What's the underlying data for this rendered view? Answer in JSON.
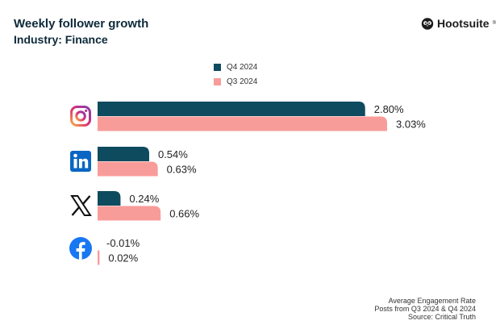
{
  "header": {
    "title": "Weekly follower growth",
    "subtitle": "Industry: Finance",
    "brand": "Hootsuite",
    "brand_mark": "®"
  },
  "legend": [
    {
      "label": "Q4 2024",
      "color": "#0e4b5f"
    },
    {
      "label": "Q3 2024",
      "color": "#f89c9a"
    }
  ],
  "chart_data": {
    "type": "bar",
    "orientation": "horizontal",
    "categories": [
      "instagram-icon",
      "linkedin-icon",
      "x-icon",
      "facebook-icon"
    ],
    "series": [
      {
        "name": "Q4 2024",
        "color": "#0e4b5f",
        "values": [
          2.8,
          0.54,
          0.24,
          -0.01
        ]
      },
      {
        "name": "Q3 2024",
        "color": "#f89c9a",
        "values": [
          3.03,
          0.63,
          0.66,
          0.02
        ]
      }
    ],
    "data_labels": [
      [
        "2.80%",
        "0.54%",
        "0.24%",
        "-0.01%"
      ],
      [
        "3.03%",
        "0.63%",
        "0.66%",
        "0.02%"
      ]
    ],
    "xlim": [
      0,
      3.03
    ],
    "grid": false,
    "legend_position": "top"
  },
  "footer": {
    "line1": "Average Engagement Rate",
    "line2": "Posts from Q3 2024 & Q4 2024",
    "line3": "Source: Critical Truth"
  }
}
